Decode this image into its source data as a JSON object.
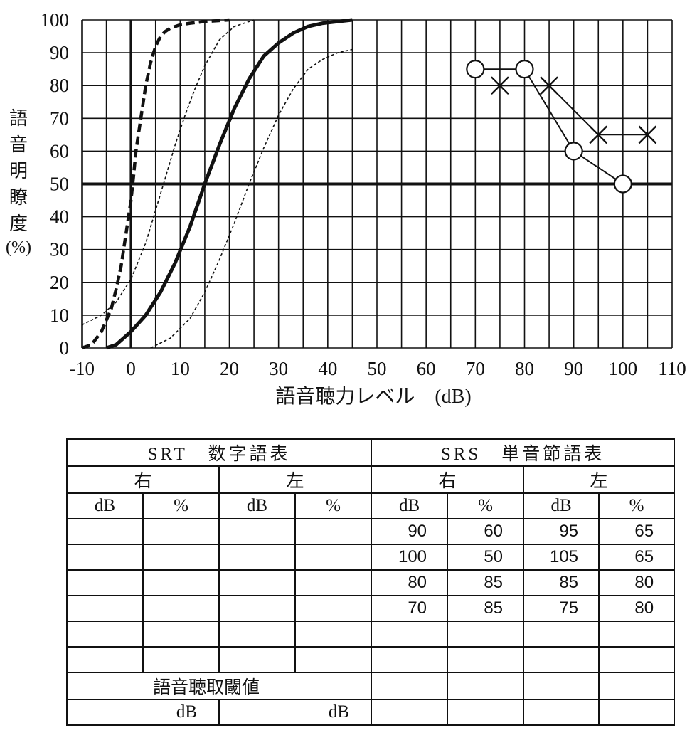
{
  "chart_data": {
    "type": "line",
    "xlabel": "語音聴力レベル　(dB)",
    "ylabel": [
      "語",
      "音",
      "明",
      "瞭",
      "度"
    ],
    "ylabel_unit": "(%)",
    "xlim": [
      -10,
      110
    ],
    "ylim": [
      0,
      100
    ],
    "xticks": [
      "-10",
      "0",
      "10",
      "20",
      "30",
      "40",
      "50",
      "60",
      "70",
      "80",
      "90",
      "100",
      "110"
    ],
    "yticks": [
      "0",
      "10",
      "20",
      "30",
      "40",
      "50",
      "60",
      "70",
      "80",
      "90",
      "100"
    ],
    "grid": true,
    "reference_line_y": 50,
    "reference_curves": [
      {
        "style": "thick-dashed",
        "x": [
          -10,
          -8,
          -6,
          -4,
          -3,
          -2,
          -1,
          0,
          0.5,
          1,
          2,
          3,
          4,
          5,
          6,
          7,
          8,
          9,
          10,
          12,
          15,
          20
        ],
        "y": [
          0,
          1,
          5,
          12,
          18,
          25,
          35,
          45,
          52,
          60,
          70,
          80,
          87,
          92,
          95,
          96.5,
          97.5,
          98,
          98.5,
          99,
          99.5,
          100
        ]
      },
      {
        "style": "solid-thick",
        "x": [
          -5,
          -3,
          0,
          3,
          6,
          9,
          12,
          15,
          18,
          21,
          24,
          27,
          30,
          33,
          36,
          39,
          42,
          45
        ],
        "y": [
          0,
          1,
          5,
          10,
          17,
          26,
          37,
          50,
          62,
          73,
          82,
          89,
          93,
          96,
          98,
          99,
          99.5,
          100
        ]
      },
      {
        "style": "thin-dotted",
        "x": [
          -10,
          -6,
          -3,
          0,
          3,
          5,
          7,
          9,
          11,
          13,
          15,
          18,
          21,
          25
        ],
        "y": [
          7,
          10,
          14,
          21,
          32,
          42,
          52,
          62,
          71,
          79,
          86,
          94,
          98,
          100
        ]
      },
      {
        "style": "thin-dotted",
        "x": [
          4,
          8,
          12,
          15,
          18,
          21,
          24,
          27,
          30,
          33,
          36,
          39,
          42,
          45
        ],
        "y": [
          0,
          3,
          9,
          17,
          27,
          38,
          50,
          61,
          71,
          79,
          85,
          88,
          90,
          91
        ]
      }
    ],
    "series": [
      {
        "marker": "circle",
        "x": [
          70,
          80,
          90,
          100
        ],
        "y": [
          85,
          85,
          60,
          50
        ]
      },
      {
        "marker": "cross",
        "x": [
          75,
          85,
          95,
          105
        ],
        "y": [
          80,
          80,
          65,
          65
        ]
      }
    ]
  },
  "table": {
    "srt_title": "SRT　数字語表",
    "srs_title": "SRS　単音節語表",
    "right": "右",
    "left": "左",
    "col_db": "dB",
    "col_pct": "%",
    "srs_right_rows": [
      [
        "90",
        "60"
      ],
      [
        "100",
        "50"
      ],
      [
        "80",
        "85"
      ],
      [
        "70",
        "85"
      ]
    ],
    "srs_left_rows": [
      [
        "95",
        "65"
      ],
      [
        "105",
        "65"
      ],
      [
        "85",
        "80"
      ],
      [
        "75",
        "80"
      ]
    ],
    "threshold_label": "語音聴取閾値",
    "threshold_unit": "dB"
  }
}
